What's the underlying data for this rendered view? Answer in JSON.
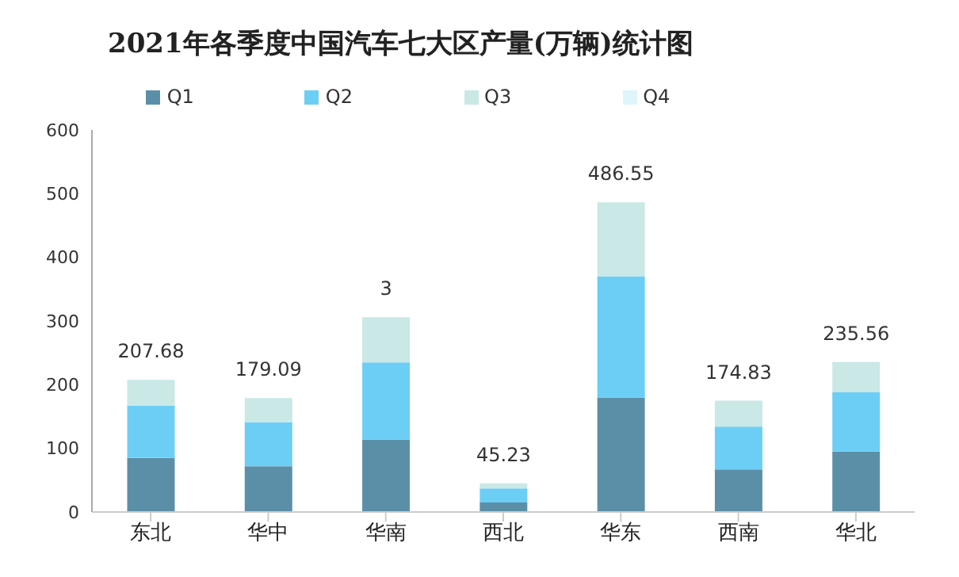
{
  "chart_data": {
    "type": "bar",
    "title": "2021年各季度中国汽车七大区产量(万辆)统计图",
    "categories": [
      "东北",
      "华中",
      "华南",
      "西北",
      "华东",
      "西南",
      "华北"
    ],
    "stacked": true,
    "series": [
      {
        "name": "Q1",
        "color": "#5b8fa8",
        "values": [
          85,
          72,
          114,
          15,
          180,
          67,
          95
        ]
      },
      {
        "name": "Q2",
        "color": "#6ccef5",
        "values": [
          82,
          69,
          121,
          22,
          190,
          67,
          93
        ]
      },
      {
        "name": "Q3",
        "color": "#c9e8e6",
        "values": [
          40.68,
          38.09,
          71,
          8.23,
          116.55,
          40.83,
          47.56
        ]
      },
      {
        "name": "Q4",
        "color": "#dff4fb",
        "values": [
          0,
          0,
          0,
          0,
          0,
          0,
          0
        ]
      }
    ],
    "totals": [
      "207.68",
      "179.09",
      null,
      "45.23",
      "486.55",
      "174.83",
      "235.56"
    ],
    "annotations": [
      {
        "text": "3",
        "x": "华南",
        "y": 306
      }
    ],
    "ylim": [
      0,
      600
    ],
    "yticks": [
      0,
      100,
      200,
      300,
      400,
      500,
      600
    ],
    "grid": false,
    "legend": "top"
  }
}
